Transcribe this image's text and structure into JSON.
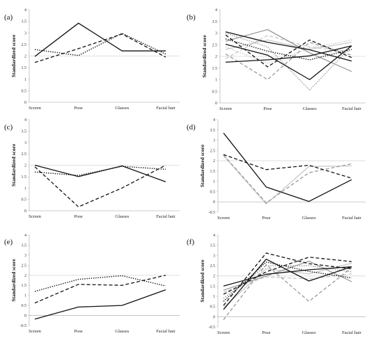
{
  "figure": {
    "categories": [
      "Screen",
      "Pose",
      "Glasses",
      "Facial hair"
    ],
    "ylabel": "Standardized score",
    "colors": {
      "dark": "#111111",
      "gray": "#9a9a9a",
      "light": "#c8c8c8",
      "refline": "#e0e0e0",
      "axis": "#bbbbbb"
    }
  },
  "chart_data": [
    {
      "panel": "(a)",
      "type": "line",
      "categories": [
        "Screen",
        "Pose",
        "Glasses",
        "Facial hair"
      ],
      "ylabel": "Standardized score",
      "ylim": [
        0,
        4
      ],
      "ref": 2,
      "series": [
        {
          "values": [
            1.98,
            3.42,
            2.22,
            2.22
          ],
          "style": "solid",
          "color": "#111111"
        },
        {
          "values": [
            1.72,
            2.32,
            2.95,
            1.95
          ],
          "style": "dashed",
          "color": "#111111"
        },
        {
          "values": [
            2.28,
            2.02,
            2.98,
            2.08
          ],
          "style": "dotted",
          "color": "#111111"
        }
      ]
    },
    {
      "panel": "(b)",
      "type": "line",
      "categories": [
        "Screen",
        "Pose",
        "Glasses",
        "Facial hair"
      ],
      "ylabel": "Standardized score",
      "ylim": [
        0,
        4
      ],
      "ref": 2,
      "series": [
        {
          "values": [
            3.05,
            2.6,
            2.28,
            1.8
          ],
          "style": "solid",
          "color": "#111111"
        },
        {
          "values": [
            2.52,
            2.05,
            1.0,
            2.45
          ],
          "style": "solid",
          "color": "#111111"
        },
        {
          "values": [
            1.75,
            1.85,
            2.02,
            2.45
          ],
          "style": "solid",
          "color": "#111111"
        },
        {
          "values": [
            2.92,
            1.55,
            2.7,
            1.95
          ],
          "style": "dashed",
          "color": "#111111"
        },
        {
          "values": [
            2.75,
            2.22,
            1.85,
            2.3
          ],
          "style": "dotted",
          "color": "#111111"
        },
        {
          "values": [
            2.65,
            3.15,
            2.15,
            1.35
          ],
          "style": "solid",
          "color": "#9a9a9a"
        },
        {
          "values": [
            2.1,
            1.0,
            2.6,
            2.05
          ],
          "style": "dashed",
          "color": "#9a9a9a"
        },
        {
          "values": [
            3.0,
            2.4,
            0.55,
            2.45
          ],
          "style": "dotted",
          "color": "#9a9a9a"
        },
        {
          "values": [
            2.3,
            2.7,
            2.3,
            2.6
          ],
          "style": "solid",
          "color": "#c8c8c8"
        },
        {
          "values": [
            1.9,
            2.9,
            2.4,
            2.2
          ],
          "style": "dashed",
          "color": "#c8c8c8"
        },
        {
          "values": [
            2.4,
            1.7,
            2.35,
            2.7
          ],
          "style": "dotted",
          "color": "#c8c8c8"
        }
      ]
    },
    {
      "panel": "(c)",
      "type": "line",
      "categories": [
        "Screen",
        "Pose",
        "Glasses",
        "Facial hair"
      ],
      "ylabel": "Standardized score",
      "ylim": [
        0,
        4
      ],
      "ref": 2,
      "series": [
        {
          "values": [
            2.0,
            1.5,
            1.97,
            1.27
          ],
          "style": "solid",
          "color": "#111111"
        },
        {
          "values": [
            1.93,
            0.17,
            1.0,
            2.0
          ],
          "style": "dashed",
          "color": "#111111"
        },
        {
          "values": [
            1.7,
            1.55,
            1.95,
            1.82
          ],
          "style": "dotted",
          "color": "#111111"
        }
      ]
    },
    {
      "panel": "(d)",
      "type": "line",
      "categories": [
        "Screen",
        "Pose",
        "Glasses",
        "Facial hair"
      ],
      "ylabel": "Standardized score",
      "ylim": [
        -0.5,
        4
      ],
      "ref": 2,
      "series": [
        {
          "values": [
            3.35,
            0.72,
            0.02,
            1.08
          ],
          "style": "solid",
          "color": "#111111"
        },
        {
          "values": [
            2.3,
            1.57,
            1.78,
            1.15
          ],
          "style": "dashed",
          "color": "#111111"
        },
        {
          "values": [
            2.28,
            -0.05,
            1.42,
            1.85
          ],
          "style": "dashed",
          "color": "#9a9a9a"
        },
        {
          "values": [
            2.25,
            -0.1,
            1.72,
            1.75
          ],
          "style": "solid",
          "color": "#c8c8c8"
        }
      ]
    },
    {
      "panel": "(e)",
      "type": "line",
      "categories": [
        "Screen",
        "Pose",
        "Glasses",
        "Facial hair"
      ],
      "ylabel": "Standardized score",
      "ylim": [
        -0.5,
        4
      ],
      "ref": 2,
      "series": [
        {
          "values": [
            -0.18,
            0.42,
            0.5,
            1.28
          ],
          "style": "solid",
          "color": "#111111"
        },
        {
          "values": [
            0.62,
            1.55,
            1.5,
            2.0
          ],
          "style": "dashed",
          "color": "#111111"
        },
        {
          "values": [
            1.2,
            1.8,
            1.98,
            1.47
          ],
          "style": "dotted",
          "color": "#111111"
        }
      ]
    },
    {
      "panel": "(f)",
      "type": "line",
      "categories": [
        "Screen",
        "Pose",
        "Glasses",
        "Facial hair"
      ],
      "ylabel": "Standardized score",
      "ylim": [
        -0.5,
        4
      ],
      "ref": 2,
      "series": [
        {
          "values": [
            0.35,
            2.82,
            1.75,
            2.45
          ],
          "style": "solid",
          "color": "#111111"
        },
        {
          "values": [
            0.55,
            3.12,
            2.6,
            2.35
          ],
          "style": "dashed",
          "color": "#111111"
        },
        {
          "values": [
            1.5,
            2.08,
            2.3,
            2.45
          ],
          "style": "solid",
          "color": "#111111"
        },
        {
          "values": [
            1.1,
            2.2,
            2.92,
            2.7
          ],
          "style": "dashed",
          "color": "#111111"
        },
        {
          "values": [
            0.75,
            2.68,
            2.22,
            1.9
          ],
          "style": "dotted",
          "color": "#111111"
        },
        {
          "values": [
            -0.15,
            2.55,
            0.75,
            2.4
          ],
          "style": "dashed",
          "color": "#9a9a9a"
        },
        {
          "values": [
            1.3,
            2.0,
            2.72,
            1.72
          ],
          "style": "solid",
          "color": "#9a9a9a"
        },
        {
          "values": [
            0.9,
            2.5,
            2.5,
            2.2
          ],
          "style": "dotted",
          "color": "#9a9a9a"
        },
        {
          "values": [
            0.45,
            2.35,
            2.1,
            2.62
          ],
          "style": "solid",
          "color": "#c8c8c8"
        },
        {
          "values": [
            1.2,
            1.95,
            1.85,
            2.1
          ],
          "style": "dashed",
          "color": "#c8c8c8"
        }
      ]
    }
  ]
}
